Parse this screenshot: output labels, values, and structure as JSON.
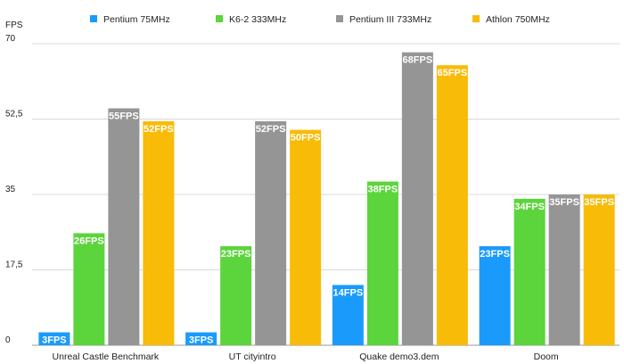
{
  "chart_data": {
    "type": "bar",
    "ylabel": "FPS",
    "ylim": [
      0,
      70
    ],
    "yticks": [
      "0",
      "17,5",
      "35",
      "52,5",
      "70"
    ],
    "ytick_values": [
      0,
      17.5,
      35,
      52.5,
      70
    ],
    "categories": [
      "Unreal Castle Benchmark",
      "UT cityintro",
      "Quake demo3.dem",
      "Doom"
    ],
    "series": [
      {
        "name": "Pentium 75MHz",
        "color": "#1a9bfb",
        "values": [
          3,
          3,
          14,
          23
        ],
        "labels": [
          "3FPS",
          "3FPS",
          "14FPS",
          "23FPS"
        ]
      },
      {
        "name": "K6-2 333MHz",
        "color": "#5cd43c",
        "values": [
          26,
          23,
          38,
          34
        ],
        "labels": [
          "26FPS",
          "23FPS",
          "38FPS",
          "34FPS"
        ]
      },
      {
        "name": "Pentium III 733MHz",
        "color": "#959595",
        "values": [
          55,
          52,
          68,
          35
        ],
        "labels": [
          "55FPS",
          "52FPS",
          "68FPS",
          "35FPS"
        ]
      },
      {
        "name": "Athlon 750MHz",
        "color": "#f8bb08",
        "values": [
          52,
          50,
          65,
          35
        ],
        "labels": [
          "52FPS",
          "50FPS",
          "65FPS",
          "35FPS"
        ]
      }
    ],
    "grid": true,
    "legend": "top"
  }
}
